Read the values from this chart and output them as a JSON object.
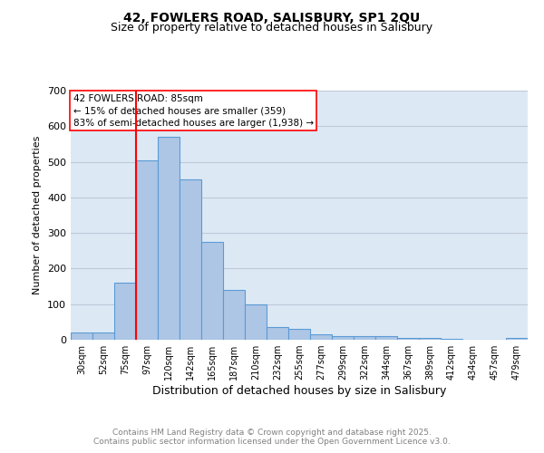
{
  "title1": "42, FOWLERS ROAD, SALISBURY, SP1 2QU",
  "title2": "Size of property relative to detached houses in Salisbury",
  "xlabel": "Distribution of detached houses by size in Salisbury",
  "ylabel": "Number of detached properties",
  "categories": [
    "30sqm",
    "52sqm",
    "75sqm",
    "97sqm",
    "120sqm",
    "142sqm",
    "165sqm",
    "187sqm",
    "210sqm",
    "232sqm",
    "255sqm",
    "277sqm",
    "299sqm",
    "322sqm",
    "344sqm",
    "367sqm",
    "389sqm",
    "412sqm",
    "434sqm",
    "457sqm",
    "479sqm"
  ],
  "values": [
    20,
    20,
    160,
    505,
    570,
    450,
    275,
    140,
    100,
    35,
    30,
    15,
    10,
    10,
    10,
    5,
    5,
    2,
    1,
    1,
    5
  ],
  "bar_color": "#adc6e5",
  "bar_edge_color": "#5b9bd5",
  "red_line_x": 2.5,
  "annotation_text": "42 FOWLERS ROAD: 85sqm\n← 15% of detached houses are smaller (359)\n83% of semi-detached houses are larger (1,938) →",
  "annotation_box_color": "white",
  "annotation_box_edge_color": "red",
  "red_line_color": "red",
  "ylim": [
    0,
    700
  ],
  "yticks": [
    0,
    100,
    200,
    300,
    400,
    500,
    600,
    700
  ],
  "grid_color": "#c0c8d8",
  "background_color": "#dce9f5",
  "footer_text": "Contains HM Land Registry data © Crown copyright and database right 2025.\nContains public sector information licensed under the Open Government Licence v3.0.",
  "title_fontsize": 10,
  "subtitle_fontsize": 9,
  "annotation_fontsize": 7.5,
  "footer_fontsize": 6.5,
  "ylabel_fontsize": 8,
  "xlabel_fontsize": 9,
  "tick_fontsize": 7
}
